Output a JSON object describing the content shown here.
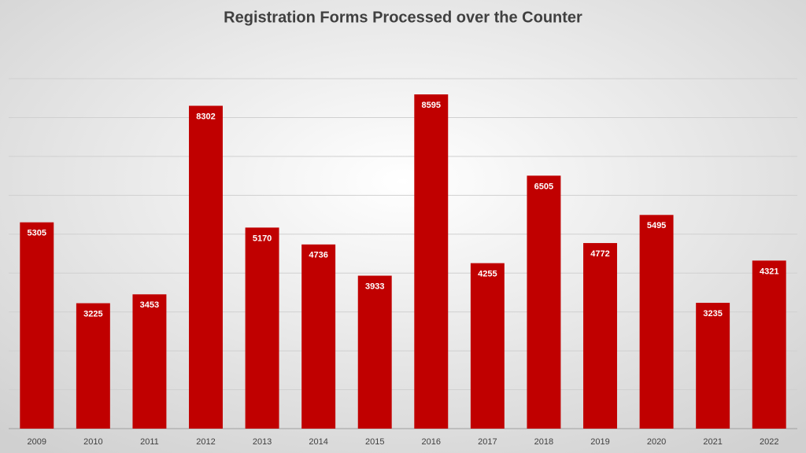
{
  "chart_data": {
    "type": "bar",
    "title": "Registration Forms Processed over the Counter",
    "categories": [
      "2009",
      "2010",
      "2011",
      "2012",
      "2013",
      "2014",
      "2015",
      "2016",
      "2017",
      "2018",
      "2019",
      "2020",
      "2021",
      "2022"
    ],
    "values": [
      5305,
      3225,
      3453,
      8302,
      5170,
      4736,
      3933,
      8595,
      4255,
      6505,
      4772,
      5495,
      3235,
      4321
    ],
    "color": "#c00000",
    "ylim": [
      0,
      9000
    ],
    "yticks": [
      0,
      1000,
      2000,
      3000,
      4000,
      5000,
      6000,
      7000,
      8000,
      9000
    ],
    "grid": true
  }
}
